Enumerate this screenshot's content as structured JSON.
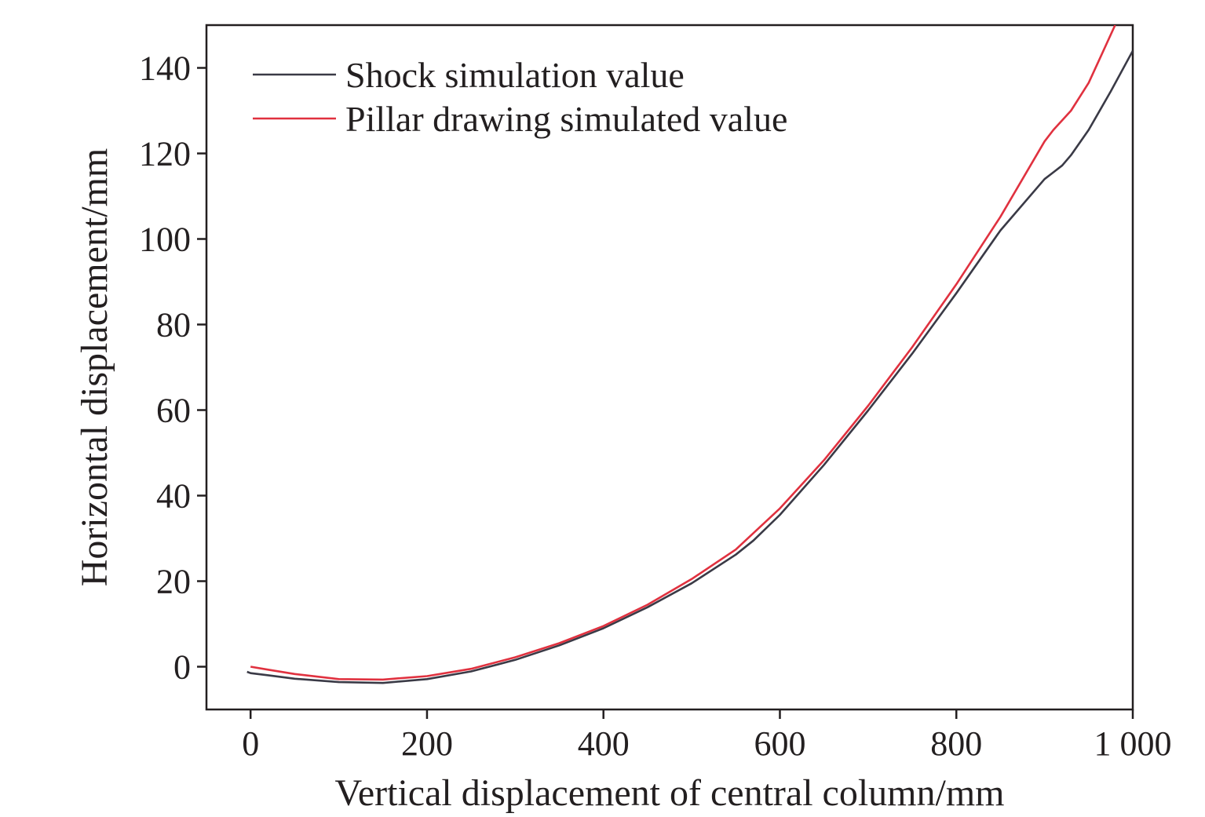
{
  "chart_data": {
    "type": "line",
    "title": "",
    "xlabel": "Vertical displacement of central column/mm",
    "ylabel": "Horizontal displacement/mm",
    "xlim": [
      -50,
      1000
    ],
    "ylim": [
      -10,
      150
    ],
    "xticks": [
      0,
      200,
      400,
      600,
      800,
      1000
    ],
    "xtick_labels": [
      "0",
      "200",
      "400",
      "600",
      "800",
      "1 000"
    ],
    "yticks": [
      0,
      20,
      40,
      60,
      80,
      100,
      120,
      140
    ],
    "ytick_labels": [
      "0",
      "20",
      "40",
      "60",
      "80",
      "100",
      "120",
      "140"
    ],
    "grid": false,
    "legend_position": "top-left",
    "series": [
      {
        "name": "Shock simulation value",
        "color": "#3a3a46",
        "x": [
          -4,
          0,
          20,
          50,
          100,
          150,
          200,
          250,
          300,
          350,
          400,
          450,
          500,
          550,
          570,
          580,
          600,
          650,
          700,
          750,
          800,
          850,
          900,
          910,
          920,
          930,
          950,
          975,
          1000
        ],
        "y": [
          -1.2,
          -1.5,
          -2.0,
          -2.8,
          -3.6,
          -3.8,
          -2.9,
          -1.1,
          1.6,
          5.0,
          9.0,
          13.9,
          19.5,
          26.2,
          29.5,
          31.5,
          35.5,
          47.2,
          59.9,
          73.2,
          87.3,
          102.0,
          114.0,
          115.6,
          117.2,
          119.6,
          125.5,
          134.5,
          144.0
        ]
      },
      {
        "name": "Pillar drawing simulated value",
        "color": "#e0313f",
        "x": [
          0,
          20,
          50,
          100,
          150,
          200,
          250,
          300,
          350,
          400,
          450,
          500,
          550,
          600,
          650,
          700,
          750,
          800,
          850,
          900,
          910,
          930,
          950,
          980
        ],
        "y": [
          0.0,
          -0.7,
          -1.7,
          -2.9,
          -3.0,
          -2.2,
          -0.5,
          2.2,
          5.5,
          9.5,
          14.5,
          20.5,
          27.4,
          37.0,
          48.3,
          61.0,
          74.7,
          89.4,
          105.2,
          122.8,
          125.5,
          130.0,
          136.5,
          150.0
        ]
      }
    ]
  }
}
